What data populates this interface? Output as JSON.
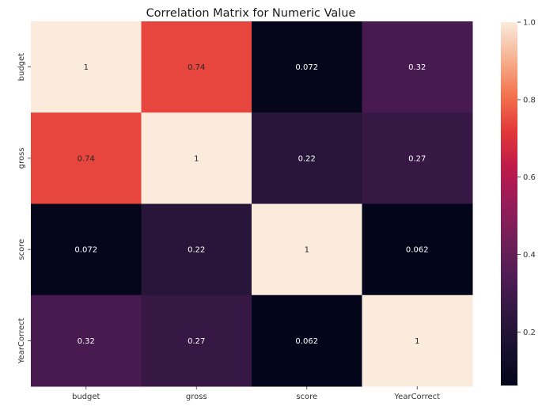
{
  "chart_data": {
    "type": "heatmap",
    "title": "Correlation Matrix for Numeric Value",
    "x_labels": [
      "budget",
      "gross",
      "score",
      "YearCorrect"
    ],
    "y_labels": [
      "budget",
      "gross",
      "score",
      "YearCorrect"
    ],
    "values": [
      [
        1,
        0.74,
        0.072,
        0.32
      ],
      [
        0.74,
        1,
        0.22,
        0.27
      ],
      [
        0.072,
        0.22,
        1,
        0.062
      ],
      [
        0.32,
        0.27,
        0.062,
        1
      ]
    ],
    "value_labels": [
      [
        "1",
        "0.74",
        "0.072",
        "0.32"
      ],
      [
        "0.74",
        "1",
        "0.22",
        "0.27"
      ],
      [
        "0.072",
        "0.22",
        "1",
        "0.062"
      ],
      [
        "0.32",
        "0.27",
        "0.062",
        "1"
      ]
    ],
    "colormap": "rocket",
    "colorbar": {
      "range": [
        0.062,
        1.0
      ],
      "ticks": [
        0.2,
        0.4,
        0.6,
        0.8,
        1.0
      ],
      "tick_labels": [
        "0.2",
        "0.4",
        "0.6",
        "0.8",
        "1.0"
      ]
    },
    "colors": {
      "low": "#0d0a1e",
      "high": "#faebdd"
    }
  }
}
